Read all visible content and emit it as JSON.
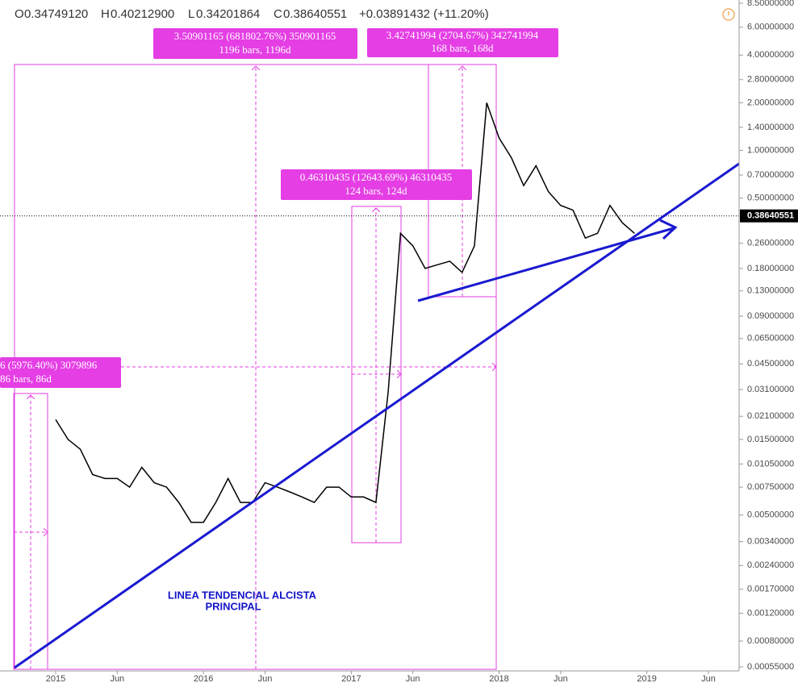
{
  "header": {
    "ohlc": [
      {
        "label": "O",
        "value": "0.34749120"
      },
      {
        "label": "H",
        "value": "0.40212900"
      },
      {
        "label": "L",
        "value": "0.34201864"
      },
      {
        "label": "C",
        "value": "0.38640551"
      }
    ],
    "change": "+0.03891432 (+11.20%)"
  },
  "annotations": [
    {
      "lines": [
        "3.50901165 (681802.76%) 350901165",
        "1196 bars, 1196d"
      ]
    },
    {
      "lines": [
        "3.42741994 (2704.67%) 342741994",
        "168 bars, 168d"
      ]
    },
    {
      "lines": [
        "0.46310435 (12643.69%) 46310435",
        "124 bars, 124d"
      ]
    },
    {
      "lines": [
        "6 (5976.40%) 3079896",
        "86 bars, 86d"
      ]
    },
    {
      "lines": [
        "LINEA TENDENCIAL ALCISTA",
        "PRINCIPAL"
      ]
    }
  ],
  "chart_data": {
    "type": "line",
    "log_scale": true,
    "grid": false,
    "color": "#000000",
    "x": [
      "2015-01",
      "2015-02",
      "2015-03",
      "2015-04",
      "2015-05",
      "2015-06",
      "2015-07",
      "2015-08",
      "2015-09",
      "2015-10",
      "2015-11",
      "2015-12",
      "2016-01",
      "2016-02",
      "2016-03",
      "2016-04",
      "2016-05",
      "2016-06",
      "2016-07",
      "2016-08",
      "2016-09",
      "2016-10",
      "2016-11",
      "2016-12",
      "2017-01",
      "2017-02",
      "2017-03",
      "2017-04",
      "2017-05",
      "2017-06",
      "2017-07",
      "2017-08",
      "2017-09",
      "2017-10",
      "2017-11",
      "2017-12",
      "2018-01",
      "2018-02",
      "2018-03",
      "2018-04",
      "2018-05",
      "2018-06",
      "2018-07",
      "2018-08",
      "2018-09",
      "2018-10",
      "2018-11",
      "2018-12"
    ],
    "values": [
      0.02,
      0.015,
      0.013,
      0.009,
      0.0085,
      0.0085,
      0.0075,
      0.01,
      0.008,
      0.0075,
      0.006,
      0.0045,
      0.0045,
      0.006,
      0.0085,
      0.006,
      0.006,
      0.008,
      0.0075,
      0.007,
      0.0065,
      0.006,
      0.0075,
      0.0075,
      0.0065,
      0.0065,
      0.006,
      0.03,
      0.3,
      0.25,
      0.18,
      0.19,
      0.2,
      0.17,
      0.25,
      2.0,
      1.2,
      0.9,
      0.6,
      0.8,
      0.55,
      0.45,
      0.42,
      0.28,
      0.3,
      0.45,
      0.35,
      0.3
    ],
    "xlim": [
      "2015-01",
      "2019-06"
    ],
    "xticks": [
      {
        "value": "2015-01",
        "label": "2015"
      },
      {
        "value": "2015-06",
        "label": "Jun"
      },
      {
        "value": "2016-01",
        "label": "2016"
      },
      {
        "value": "2016-06",
        "label": "Jun"
      },
      {
        "value": "2017-01",
        "label": "2017"
      },
      {
        "value": "2017-06",
        "label": "Jun"
      },
      {
        "value": "2018-01",
        "label": "2018"
      },
      {
        "value": "2018-06",
        "label": "Jun"
      },
      {
        "value": "2019-01",
        "label": "2019"
      },
      {
        "value": "2019-06",
        "label": "Jun"
      }
    ],
    "ylim": [
      0.00055,
      8.5
    ],
    "yticks": [
      {
        "value": 8.5,
        "label": "8.50000000"
      },
      {
        "value": 6,
        "label": "6.00000000"
      },
      {
        "value": 4,
        "label": "4.00000000"
      },
      {
        "value": 2.8,
        "label": "2.80000000"
      },
      {
        "value": 2,
        "label": "2.00000000"
      },
      {
        "value": 1.4,
        "label": "1.40000000"
      },
      {
        "value": 1,
        "label": "1.00000000"
      },
      {
        "value": 0.7,
        "label": "0.70000000"
      },
      {
        "value": 0.5,
        "label": "0.50000000"
      },
      {
        "value": 0.26,
        "label": "0.26000000"
      },
      {
        "value": 0.18,
        "label": "0.18000000"
      },
      {
        "value": 0.13,
        "label": "0.13000000"
      },
      {
        "value": 0.09,
        "label": "0.09000000"
      },
      {
        "value": 0.065,
        "label": "0.06500000"
      },
      {
        "value": 0.045,
        "label": "0.04500000"
      },
      {
        "value": 0.031,
        "label": "0.03100000"
      },
      {
        "value": 0.021,
        "label": "0.02100000"
      },
      {
        "value": 0.015,
        "label": "0.01500000"
      },
      {
        "value": 0.0105,
        "label": "0.01050000"
      },
      {
        "value": 0.0075,
        "label": "0.00750000"
      },
      {
        "value": 0.005,
        "label": "0.00500000"
      },
      {
        "value": 0.0034,
        "label": "0.00340000"
      },
      {
        "value": 0.0024,
        "label": "0.00240000"
      },
      {
        "value": 0.0017,
        "label": "0.00170000"
      },
      {
        "value": 0.0012,
        "label": "0.00120000"
      },
      {
        "value": 0.0008,
        "label": "0.00080000"
      },
      {
        "value": 0.00055,
        "label": "0.00055000"
      }
    ],
    "last_price": {
      "value": 0.38640551,
      "label": "0.38640551"
    }
  }
}
